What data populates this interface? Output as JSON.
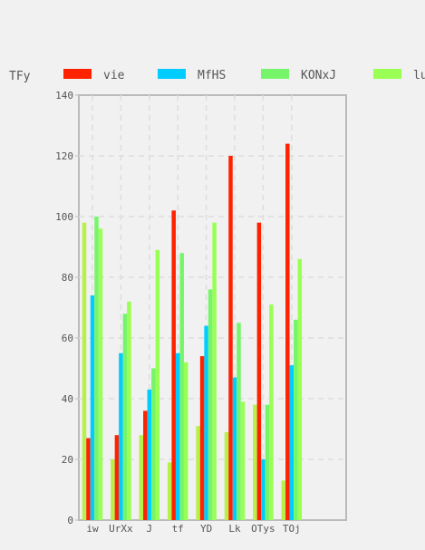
{
  "chart_data": {
    "type": "bar",
    "legend_title": "TFy",
    "legend_position": "top",
    "categories": [
      "iw",
      "UrXx",
      "J",
      "tf",
      "YD",
      "Lk",
      "OTys",
      "TOj"
    ],
    "series": [
      {
        "name": "",
        "color": "#b7f04a",
        "values": [
          98,
          20,
          28,
          19,
          31,
          29,
          38,
          13
        ]
      },
      {
        "name": "vie",
        "color": "#ff2200",
        "values": [
          27,
          28,
          36,
          102,
          54,
          120,
          98,
          124
        ]
      },
      {
        "name": "MfHS",
        "color": "#00ccff",
        "values": [
          74,
          55,
          43,
          55,
          64,
          47,
          20,
          51
        ]
      },
      {
        "name": "KONxJ",
        "color": "#77f56a",
        "values": [
          100,
          68,
          50,
          88,
          76,
          65,
          38,
          66
        ]
      },
      {
        "name": "lu",
        "color": "#99ff55",
        "values": [
          96,
          72,
          89,
          52,
          98,
          39,
          71,
          86
        ]
      }
    ],
    "ylim": [
      0,
      140
    ],
    "yticks": [
      0,
      20,
      40,
      60,
      80,
      100,
      120,
      140
    ],
    "grid": true
  }
}
